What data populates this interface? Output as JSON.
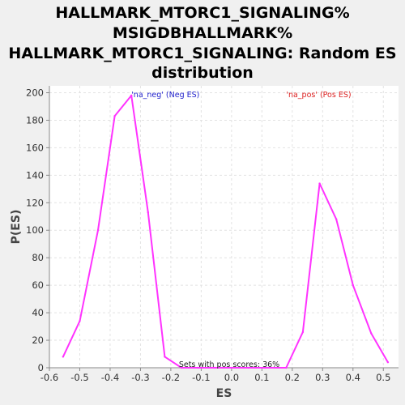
{
  "chart_data": {
    "type": "line",
    "title_lines": [
      "HALLMARK_MTORC1_SIGNALING%",
      "MSIGDBHALLMARK%",
      "HALLMARK_MTORC1_SIGNALING: Random ES",
      "distribution"
    ],
    "xlabel": "ES",
    "ylabel": "P(ES)",
    "xlim": [
      -0.6,
      0.55
    ],
    "ylim": [
      0,
      205
    ],
    "x_ticks": [
      -0.6,
      -0.5,
      -0.4,
      -0.3,
      -0.2,
      -0.1,
      0.0,
      0.1,
      0.2,
      0.3,
      0.4,
      0.5
    ],
    "x_tick_labels": [
      "-0.6",
      "-0.5",
      "-0.4",
      "-0.3",
      "-0.2",
      "-0.1",
      "0.0",
      "0.1",
      "0.2",
      "0.3",
      "0.4",
      "0.5"
    ],
    "y_ticks": [
      0,
      20,
      40,
      60,
      80,
      100,
      120,
      140,
      160,
      180,
      200
    ],
    "y_tick_labels": [
      "0",
      "20",
      "40",
      "60",
      "80",
      "100",
      "120",
      "140",
      "160",
      "180",
      "200"
    ],
    "grid": true,
    "series": [
      {
        "color": "#ff33ff",
        "x": [
          -0.555,
          -0.5,
          -0.44,
          -0.385,
          -0.33,
          -0.275,
          -0.22,
          -0.165,
          -0.11,
          -0.055,
          0.0,
          0.055,
          0.11,
          0.18,
          0.235,
          0.29,
          0.345,
          0.4,
          0.46,
          0.515
        ],
        "y": [
          8,
          34,
          100,
          183,
          198,
          113,
          8,
          0,
          0,
          0,
          0,
          0,
          0,
          0,
          26,
          134,
          108,
          60,
          25,
          4
        ]
      }
    ],
    "annotations": [
      {
        "text": "'na_neg' (Neg ES)",
        "color": "#2222cc",
        "x": -0.33,
        "y": 200
      },
      {
        "text": "'na_pos' (Pos ES)",
        "color": "#dd2222",
        "x": 0.18,
        "y": 200
      }
    ],
    "note": "Sets with pos scores: 36%"
  }
}
